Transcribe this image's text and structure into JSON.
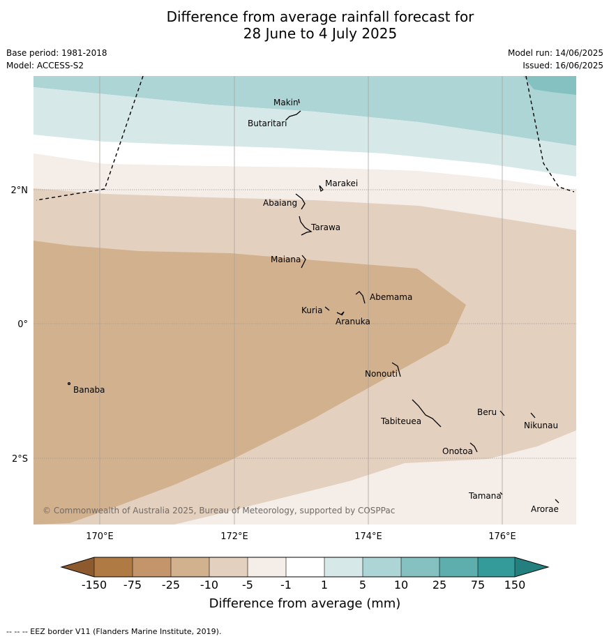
{
  "title_line1": "Difference from average rainfall forecast for",
  "title_line2": "28 June to 4 July 2025",
  "base_period": "Base period: 1981-2018",
  "model": "Model: ACCESS-S2",
  "model_run": "Model run: 14/06/2025",
  "issued": "Issued: 16/06/2025",
  "copyright": "© Commonwealth of Australia 2025, Bureau of Meteorology, supported by COSPPac",
  "footnote": "--  --  -- EEZ border V11 (Flanders Marine Institute, 2019).",
  "lon_labels": [
    "170°E",
    "172°E",
    "174°E",
    "176°E"
  ],
  "lat_labels": [
    "2°N",
    "0°",
    "2°S"
  ],
  "places": [
    "Makin",
    "Butaritari",
    "Marakei",
    "Abaiang",
    "Tarawa",
    "Maiana",
    "Abemama",
    "Kuria",
    "Aranuka",
    "Nonouti",
    "Banaba",
    "Beru",
    "Nikunau",
    "Tabiteuea",
    "Onotoa",
    "Tamana",
    "Arorae"
  ],
  "legend": {
    "title": "Difference from average (mm)",
    "ticks": [
      "-150",
      "-75",
      "-25",
      "-10",
      "-5",
      "-1",
      "1",
      "5",
      "10",
      "25",
      "75",
      "150"
    ],
    "colors": [
      "#8c5a2c",
      "#b07a44",
      "#c4956b",
      "#d2b18f",
      "#e4d0bf",
      "#f4ede8",
      "#ffffff",
      "#d6e9e8",
      "#aed5d5",
      "#85c1c1",
      "#5faeae",
      "#349a9a",
      "#24807f"
    ]
  },
  "colors": {
    "dry_strong": "#d2b18f",
    "dry_moderate": "#e4d0bf",
    "dry_light": "#f4ede8",
    "neutral": "#ffffff",
    "wet_light": "#d6e9e8",
    "wet_moderate": "#aed5d5",
    "wet_strong": "#85c1c1"
  }
}
